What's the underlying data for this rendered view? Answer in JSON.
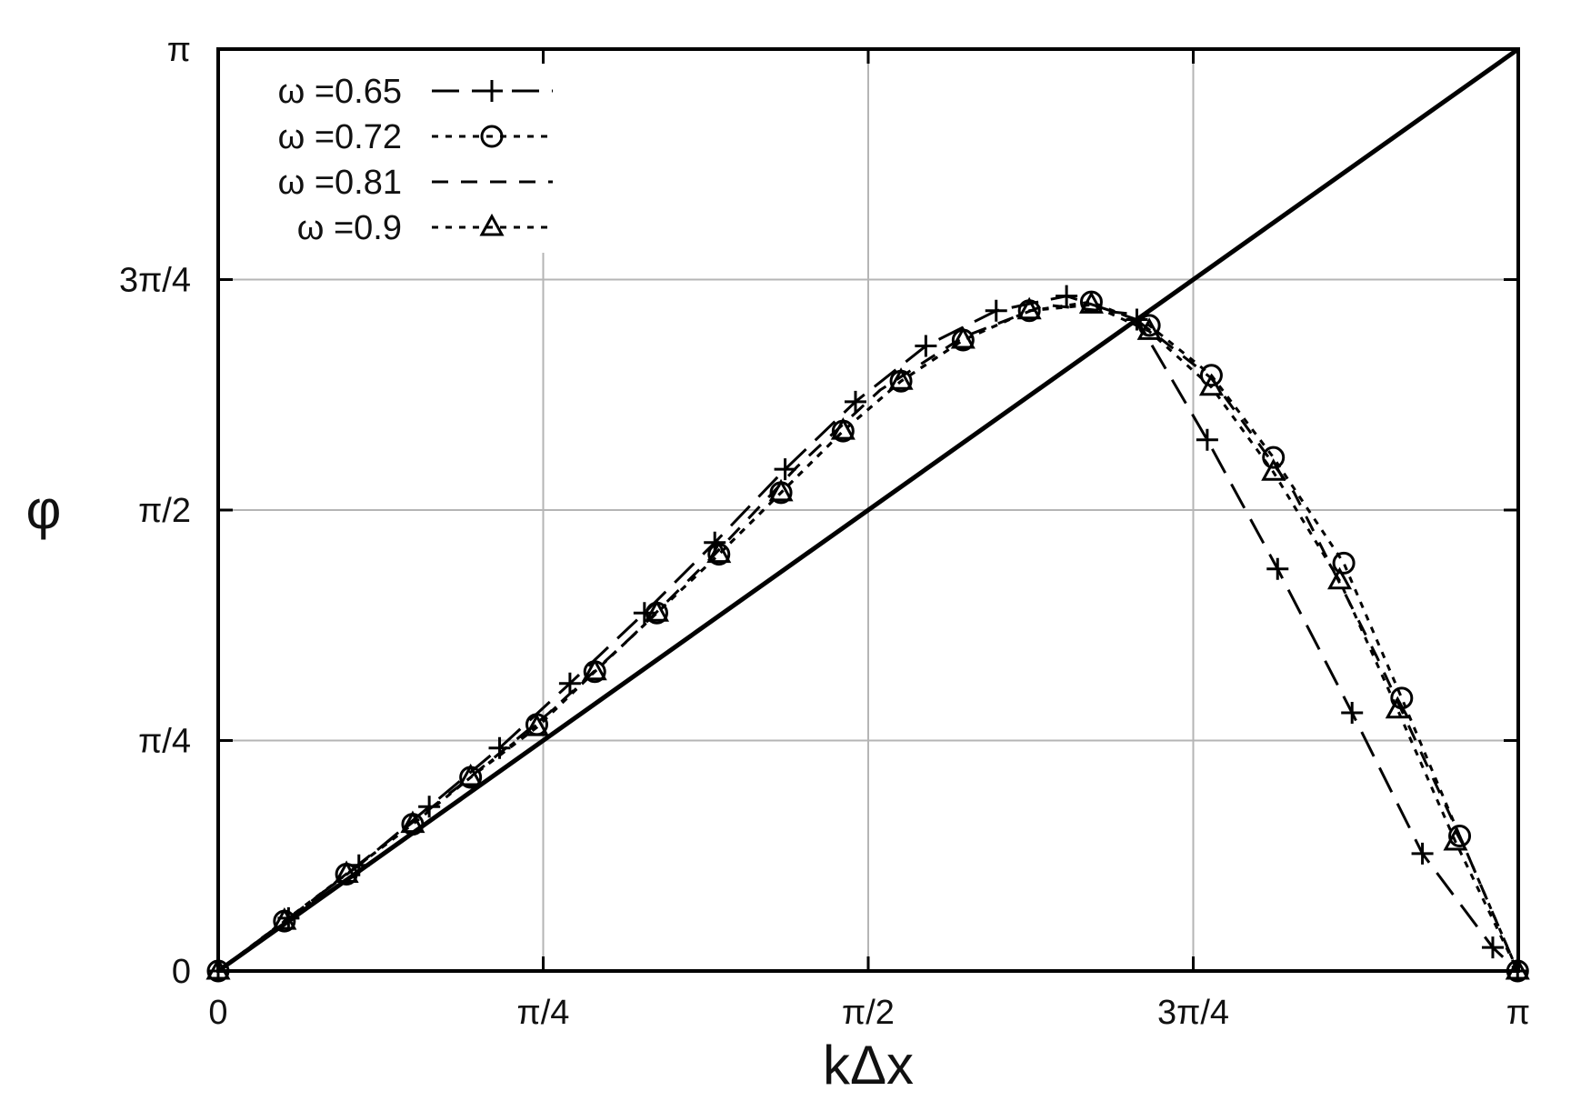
{
  "chart_data": {
    "type": "line",
    "xlabel": "kΔx",
    "ylabel": "φ",
    "xlim": [
      0,
      3.14159
    ],
    "ylim": [
      0,
      3.14159
    ],
    "grid": true,
    "legend_position": "top-left",
    "x_ticks": [
      {
        "value": 0,
        "label": "0"
      },
      {
        "value": 0.7854,
        "label": "π/4"
      },
      {
        "value": 1.5708,
        "label": "π/2"
      },
      {
        "value": 2.3562,
        "label": "3π/4"
      },
      {
        "value": 3.1416,
        "label": "π"
      }
    ],
    "y_ticks": [
      {
        "value": 0,
        "label": "0"
      },
      {
        "value": 0.7854,
        "label": "π/4"
      },
      {
        "value": 1.5708,
        "label": "π/2"
      },
      {
        "value": 2.3562,
        "label": "3π/4"
      },
      {
        "value": 3.1416,
        "label": "π"
      }
    ],
    "reference_line": {
      "x": [
        0,
        3.14159
      ],
      "y": [
        0,
        3.14159
      ]
    },
    "series": [
      {
        "name": "ω =0.65",
        "dash": "longdash",
        "marker": "plus",
        "x": [
          0.0,
          0.17,
          0.34,
          0.51,
          0.68,
          0.85,
          1.03,
          1.2,
          1.37,
          1.54,
          1.71,
          1.88,
          2.05,
          2.22,
          2.39,
          2.56,
          2.74,
          2.91,
          3.08,
          3.14
        ],
        "y": [
          0.0,
          0.18,
          0.36,
          0.56,
          0.76,
          0.98,
          1.22,
          1.46,
          1.71,
          1.94,
          2.13,
          2.25,
          2.3,
          2.22,
          1.81,
          1.37,
          0.88,
          0.4,
          0.08,
          0.0
        ]
      },
      {
        "name": "ω =0.72",
        "dash": "dotted",
        "marker": "circle",
        "x": [
          0.0,
          0.16,
          0.31,
          0.47,
          0.61,
          0.77,
          0.91,
          1.06,
          1.21,
          1.36,
          1.51,
          1.65,
          1.8,
          1.96,
          2.11,
          2.25,
          2.4,
          2.55,
          2.72,
          2.86,
          3.0,
          3.14
        ],
        "y": [
          0.0,
          0.17,
          0.33,
          0.5,
          0.66,
          0.84,
          1.02,
          1.22,
          1.42,
          1.63,
          1.84,
          2.01,
          2.15,
          2.25,
          2.28,
          2.2,
          2.03,
          1.75,
          1.39,
          0.93,
          0.46,
          0.0
        ]
      },
      {
        "name": "ω =0.81",
        "dash": "dashed",
        "marker": "none",
        "x": [
          0.0,
          0.2,
          0.4,
          0.6,
          0.8,
          1.0,
          1.2,
          1.4,
          1.6,
          1.8,
          2.0,
          2.2,
          2.4,
          2.6,
          2.8,
          3.0,
          3.14
        ],
        "y": [
          0.0,
          0.21,
          0.43,
          0.65,
          0.88,
          1.14,
          1.42,
          1.72,
          1.98,
          2.16,
          2.27,
          2.24,
          2.02,
          1.63,
          1.07,
          0.46,
          0.0
        ]
      },
      {
        "name": "ω =0.9",
        "dash": "dotted",
        "marker": "triangle",
        "x": [
          0.0,
          0.16,
          0.31,
          0.47,
          0.61,
          0.77,
          0.91,
          1.06,
          1.21,
          1.36,
          1.51,
          1.65,
          1.8,
          1.96,
          2.11,
          2.25,
          2.4,
          2.55,
          2.71,
          2.85,
          2.99,
          3.14
        ],
        "y": [
          0.0,
          0.17,
          0.33,
          0.5,
          0.66,
          0.83,
          1.02,
          1.22,
          1.42,
          1.63,
          1.84,
          2.01,
          2.15,
          2.25,
          2.27,
          2.18,
          1.99,
          1.7,
          1.33,
          0.89,
          0.44,
          0.0
        ]
      }
    ]
  }
}
